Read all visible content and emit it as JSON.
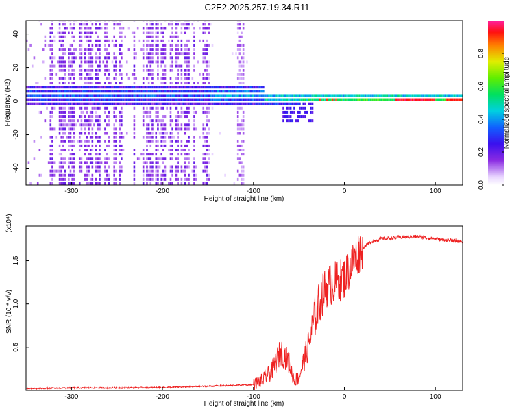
{
  "title": "C2E2.2025.257.19.34.R11",
  "chart_data": [
    {
      "type": "heatmap",
      "xlabel": "Height of straight line (km)",
      "ylabel": "Frequency (Hz)",
      "xlim": [
        -350,
        130
      ],
      "ylim": [
        -50,
        48
      ],
      "xticks": [
        -300,
        -200,
        -100,
        0,
        100
      ],
      "yticks": [
        -40,
        -20,
        0,
        20,
        40
      ],
      "xtick_labels": [
        "-300",
        "-200",
        "-100",
        "0",
        "100"
      ],
      "ytick_labels": [
        "-40",
        "-20",
        "0",
        "20",
        "40"
      ],
      "colorbar": {
        "label": "Normalized spectral amplitude",
        "range": [
          0,
          1
        ],
        "ticks": [
          0.0,
          0.2,
          0.4,
          0.6,
          0.8
        ],
        "tick_labels": [
          "0.0",
          "0.2",
          "0.4",
          "0.6",
          "0.8"
        ]
      },
      "features": [
        {
          "x_range": [
            -350,
            -150
          ],
          "freq_center": 3,
          "amplitude": 0.25,
          "note": "broad noisy band with vertical streaks"
        },
        {
          "x_range": [
            -150,
            -50
          ],
          "freq_center": 2,
          "amplitude": 0.4,
          "note": "band narrowing, dips to about -12 Hz near -40 km"
        },
        {
          "x_range": [
            -50,
            130
          ],
          "freq_center": 1,
          "amplitude": 0.9,
          "note": "narrow strong band, red peaks near 80 and 120 km"
        }
      ]
    },
    {
      "type": "line",
      "xlabel": "Height of straight line (km)",
      "ylabel": "SNR (10 * v/v)",
      "y_multiplier": "(x10⁴)",
      "xlim": [
        -350,
        130
      ],
      "ylim": [
        0,
        1.9
      ],
      "xticks": [
        -300,
        -200,
        -100,
        0,
        100
      ],
      "yticks": [
        0.5,
        1.0,
        1.5
      ],
      "xtick_labels": [
        "-300",
        "-200",
        "-100",
        "0",
        "100"
      ],
      "ytick_labels": [
        "0.5",
        "1.0",
        "1.5"
      ],
      "series": [
        {
          "name": "SNR",
          "color": "#ee2222",
          "x": [
            -350,
            -300,
            -250,
            -200,
            -150,
            -120,
            -100,
            -90,
            -80,
            -70,
            -62,
            -55,
            -50,
            -40,
            -30,
            -20,
            -10,
            0,
            10,
            20,
            30,
            40,
            60,
            80,
            100,
            130
          ],
          "y": [
            0.02,
            0.03,
            0.03,
            0.035,
            0.05,
            0.06,
            0.07,
            0.12,
            0.22,
            0.45,
            0.35,
            0.12,
            0.15,
            0.5,
            0.95,
            1.2,
            1.25,
            1.3,
            1.5,
            1.65,
            1.72,
            1.75,
            1.77,
            1.78,
            1.75,
            1.72
          ]
        }
      ]
    }
  ]
}
